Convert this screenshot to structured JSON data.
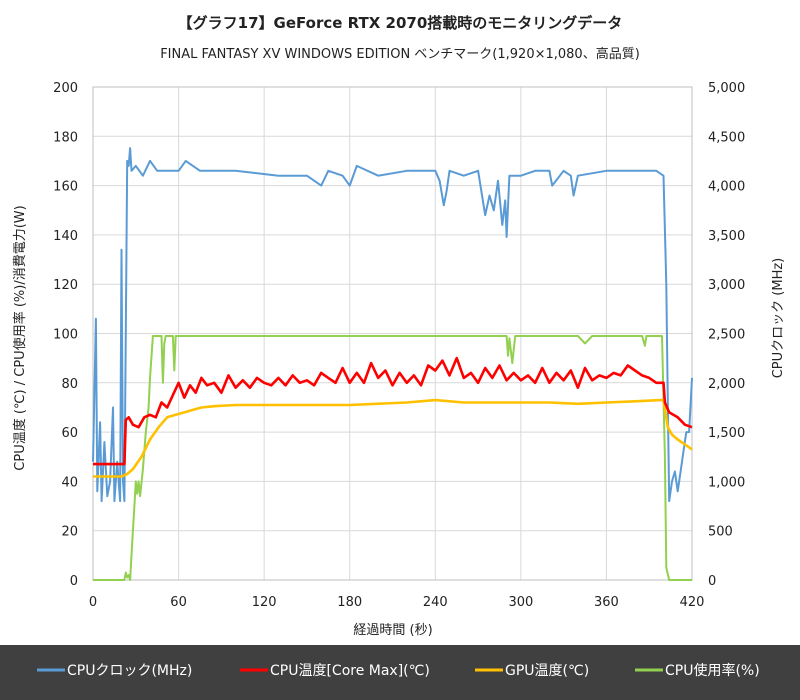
{
  "chart_data": {
    "type": "line",
    "title": "【グラフ17】GeForce RTX 2070搭載時のモニタリングデータ",
    "subtitle": "FINAL FANTASY XV WINDOWS EDITION ベンチマーク(1,920×1,080、高品質)",
    "xlabel": "経過時間 (秒)",
    "ylabel": "CPU温度 (℃) / CPU使用率 (%)/消費電力(W)",
    "y2label": "CPUクロック (MHz)",
    "xlim": [
      0,
      420
    ],
    "ylim": [
      0,
      200
    ],
    "y2lim": [
      0,
      5000
    ],
    "x_ticks": [
      "0",
      "60",
      "120",
      "180",
      "240",
      "300",
      "360",
      "420"
    ],
    "y_ticks": [
      "0",
      "20",
      "40",
      "60",
      "80",
      "100",
      "120",
      "140",
      "160",
      "180",
      "200"
    ],
    "y2_ticks": [
      "0",
      "500",
      "1,000",
      "1,500",
      "2,000",
      "2,500",
      "3,000",
      "3,500",
      "4,000",
      "4,500",
      "5,000"
    ],
    "grid": true,
    "legend_position": "bottom",
    "series": [
      {
        "name": "CPUクロック(MHz)",
        "axis": "right",
        "color": "#5b9bd5",
        "points": [
          [
            0,
            1200
          ],
          [
            2,
            2650
          ],
          [
            3,
            900
          ],
          [
            5,
            1600
          ],
          [
            6,
            800
          ],
          [
            8,
            1400
          ],
          [
            10,
            850
          ],
          [
            12,
            1000
          ],
          [
            14,
            1750
          ],
          [
            15,
            800
          ],
          [
            17,
            1200
          ],
          [
            19,
            800
          ],
          [
            20,
            3350
          ],
          [
            21,
            1000
          ],
          [
            22,
            800
          ],
          [
            24,
            4250
          ],
          [
            25,
            4200
          ],
          [
            26,
            4380
          ],
          [
            27,
            4150
          ],
          [
            30,
            4200
          ],
          [
            35,
            4100
          ],
          [
            40,
            4250
          ],
          [
            45,
            4150
          ],
          [
            60,
            4150
          ],
          [
            65,
            4250
          ],
          [
            75,
            4150
          ],
          [
            100,
            4150
          ],
          [
            130,
            4100
          ],
          [
            150,
            4100
          ],
          [
            160,
            4000
          ],
          [
            165,
            4150
          ],
          [
            175,
            4100
          ],
          [
            180,
            4000
          ],
          [
            185,
            4200
          ],
          [
            200,
            4100
          ],
          [
            220,
            4150
          ],
          [
            240,
            4150
          ],
          [
            243,
            4050
          ],
          [
            246,
            3800
          ],
          [
            248,
            3950
          ],
          [
            250,
            4150
          ],
          [
            260,
            4100
          ],
          [
            270,
            4150
          ],
          [
            275,
            3700
          ],
          [
            278,
            3900
          ],
          [
            281,
            3750
          ],
          [
            284,
            4050
          ],
          [
            287,
            3600
          ],
          [
            289,
            3850
          ],
          [
            290,
            3480
          ],
          [
            292,
            4100
          ],
          [
            300,
            4100
          ],
          [
            310,
            4150
          ],
          [
            320,
            4150
          ],
          [
            322,
            4000
          ],
          [
            330,
            4150
          ],
          [
            335,
            4100
          ],
          [
            337,
            3900
          ],
          [
            340,
            4100
          ],
          [
            360,
            4150
          ],
          [
            380,
            4150
          ],
          [
            395,
            4150
          ],
          [
            400,
            4100
          ],
          [
            402,
            3000
          ],
          [
            403,
            1800
          ],
          [
            404,
            800
          ],
          [
            406,
            1000
          ],
          [
            408,
            1100
          ],
          [
            410,
            900
          ],
          [
            412,
            1100
          ],
          [
            414,
            1300
          ],
          [
            416,
            1500
          ],
          [
            418,
            1500
          ],
          [
            420,
            2050
          ]
        ]
      },
      {
        "name": "CPU温度[Core Max](℃)",
        "axis": "left",
        "color": "#ff0000",
        "points": [
          [
            0,
            47
          ],
          [
            10,
            47
          ],
          [
            22,
            47
          ],
          [
            23,
            65
          ],
          [
            25,
            66
          ],
          [
            28,
            63
          ],
          [
            32,
            62
          ],
          [
            36,
            66
          ],
          [
            40,
            67
          ],
          [
            44,
            66
          ],
          [
            48,
            72
          ],
          [
            52,
            70
          ],
          [
            56,
            75
          ],
          [
            60,
            80
          ],
          [
            64,
            74
          ],
          [
            68,
            79
          ],
          [
            72,
            76
          ],
          [
            76,
            82
          ],
          [
            80,
            79
          ],
          [
            85,
            80
          ],
          [
            90,
            76
          ],
          [
            95,
            83
          ],
          [
            100,
            78
          ],
          [
            105,
            81
          ],
          [
            110,
            78
          ],
          [
            115,
            82
          ],
          [
            120,
            80
          ],
          [
            125,
            79
          ],
          [
            130,
            82
          ],
          [
            135,
            79
          ],
          [
            140,
            83
          ],
          [
            145,
            80
          ],
          [
            150,
            81
          ],
          [
            155,
            79
          ],
          [
            160,
            84
          ],
          [
            165,
            82
          ],
          [
            170,
            80
          ],
          [
            175,
            86
          ],
          [
            180,
            80
          ],
          [
            185,
            84
          ],
          [
            190,
            80
          ],
          [
            195,
            88
          ],
          [
            200,
            82
          ],
          [
            205,
            85
          ],
          [
            210,
            79
          ],
          [
            215,
            84
          ],
          [
            220,
            80
          ],
          [
            225,
            83
          ],
          [
            230,
            79
          ],
          [
            235,
            87
          ],
          [
            240,
            85
          ],
          [
            245,
            89
          ],
          [
            250,
            83
          ],
          [
            255,
            90
          ],
          [
            260,
            82
          ],
          [
            265,
            84
          ],
          [
            270,
            80
          ],
          [
            275,
            86
          ],
          [
            280,
            82
          ],
          [
            285,
            87
          ],
          [
            290,
            81
          ],
          [
            295,
            84
          ],
          [
            300,
            81
          ],
          [
            305,
            83
          ],
          [
            310,
            80
          ],
          [
            315,
            86
          ],
          [
            320,
            80
          ],
          [
            325,
            84
          ],
          [
            330,
            81
          ],
          [
            335,
            85
          ],
          [
            340,
            78
          ],
          [
            345,
            86
          ],
          [
            350,
            81
          ],
          [
            355,
            83
          ],
          [
            360,
            82
          ],
          [
            365,
            84
          ],
          [
            370,
            83
          ],
          [
            375,
            87
          ],
          [
            380,
            85
          ],
          [
            385,
            83
          ],
          [
            390,
            82
          ],
          [
            395,
            80
          ],
          [
            400,
            80
          ],
          [
            401,
            72
          ],
          [
            404,
            68
          ],
          [
            410,
            66
          ],
          [
            415,
            63
          ],
          [
            420,
            62
          ]
        ]
      },
      {
        "name": "GPU温度(℃)",
        "axis": "left",
        "color": "#ffc000",
        "points": [
          [
            0,
            42
          ],
          [
            10,
            42
          ],
          [
            20,
            42
          ],
          [
            24,
            43
          ],
          [
            28,
            45
          ],
          [
            34,
            50
          ],
          [
            40,
            57
          ],
          [
            46,
            62
          ],
          [
            52,
            66
          ],
          [
            58,
            67
          ],
          [
            64,
            68
          ],
          [
            70,
            69
          ],
          [
            76,
            70
          ],
          [
            85,
            70.5
          ],
          [
            100,
            71
          ],
          [
            140,
            71
          ],
          [
            180,
            71
          ],
          [
            220,
            72
          ],
          [
            240,
            73
          ],
          [
            260,
            72
          ],
          [
            280,
            72
          ],
          [
            300,
            72
          ],
          [
            320,
            72
          ],
          [
            340,
            71.5
          ],
          [
            360,
            72
          ],
          [
            380,
            72.5
          ],
          [
            398,
            73
          ],
          [
            400,
            73
          ],
          [
            403,
            62
          ],
          [
            406,
            59
          ],
          [
            410,
            57
          ],
          [
            415,
            55
          ],
          [
            420,
            53
          ]
        ]
      },
      {
        "name": "CPU使用率(%)",
        "axis": "left",
        "color": "#92d050",
        "points": [
          [
            0,
            0
          ],
          [
            20,
            0
          ],
          [
            22,
            0
          ],
          [
            23,
            3
          ],
          [
            24,
            1
          ],
          [
            25,
            2
          ],
          [
            26,
            0
          ],
          [
            28,
            20
          ],
          [
            29,
            30
          ],
          [
            30,
            40
          ],
          [
            31,
            35
          ],
          [
            32,
            40
          ],
          [
            33,
            34
          ],
          [
            35,
            45
          ],
          [
            37,
            60
          ],
          [
            39,
            70
          ],
          [
            40,
            82
          ],
          [
            42,
            99
          ],
          [
            48,
            99
          ],
          [
            49,
            80
          ],
          [
            50,
            96
          ],
          [
            51,
            99
          ],
          [
            56,
            99
          ],
          [
            57,
            85
          ],
          [
            58,
            99
          ],
          [
            100,
            99
          ],
          [
            150,
            99
          ],
          [
            200,
            99
          ],
          [
            240,
            99
          ],
          [
            250,
            99
          ],
          [
            290,
            99
          ],
          [
            291,
            91
          ],
          [
            292,
            98
          ],
          [
            294,
            88
          ],
          [
            296,
            99
          ],
          [
            340,
            99
          ],
          [
            345,
            96
          ],
          [
            350,
            99
          ],
          [
            380,
            99
          ],
          [
            385,
            99
          ],
          [
            387,
            95
          ],
          [
            388,
            99
          ],
          [
            395,
            99
          ],
          [
            399,
            99
          ],
          [
            401,
            50
          ],
          [
            402,
            5
          ],
          [
            404,
            0
          ],
          [
            420,
            0
          ]
        ]
      }
    ]
  }
}
